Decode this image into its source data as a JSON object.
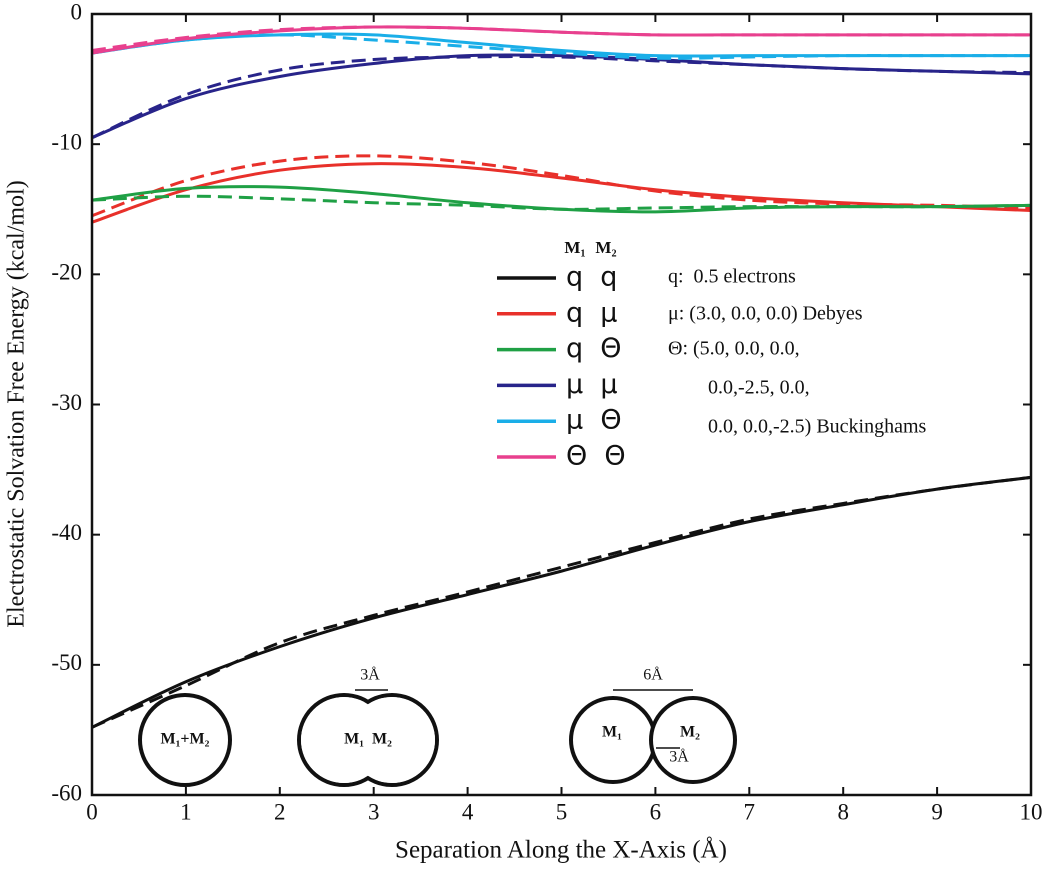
{
  "chart_data": {
    "type": "line",
    "x_label": "Separation Along the X-Axis (Å)",
    "y_label": "Electrostatic Solvation Free Energy (kcal/mol)",
    "x": [
      0,
      1,
      2,
      3,
      4,
      5,
      6,
      7,
      8,
      9,
      10
    ],
    "xlim": [
      0,
      10
    ],
    "ylim": [
      -60,
      0
    ],
    "xticks": [
      0,
      1,
      2,
      3,
      4,
      5,
      6,
      7,
      8,
      9,
      10
    ],
    "yticks": [
      -60,
      -50,
      -40,
      -30,
      -20,
      -10,
      0
    ],
    "legend_header": [
      "M₁",
      "M₂"
    ],
    "series": [
      {
        "name": "q  q",
        "color": "#111111",
        "values": [
          -54.8,
          -51.3,
          -48.6,
          -46.4,
          -44.6,
          -42.8,
          -40.8,
          -39.0,
          -37.7,
          -36.5,
          -35.6
        ]
      },
      {
        "color": "#111111",
        "dashed": true,
        "values": [
          -54.8,
          -51.6,
          -48.3,
          -46.2,
          -44.4,
          -42.5,
          -40.6,
          -38.8,
          -37.6,
          -36.5,
          -35.6
        ]
      },
      {
        "name": "q  μ",
        "color": "#e8302a",
        "values": [
          -16.0,
          -13.5,
          -12.0,
          -11.5,
          -11.8,
          -12.6,
          -13.5,
          -14.1,
          -14.5,
          -14.8,
          -15.1
        ]
      },
      {
        "color": "#e8302a",
        "dashed": true,
        "values": [
          -15.5,
          -12.8,
          -11.3,
          -10.9,
          -11.4,
          -12.4,
          -13.6,
          -14.3,
          -14.6,
          -14.7,
          -14.9
        ]
      },
      {
        "name": "q  Θ",
        "color": "#1fa045",
        "values": [
          -14.3,
          -13.4,
          -13.3,
          -13.8,
          -14.5,
          -15.0,
          -15.2,
          -14.9,
          -14.8,
          -14.8,
          -14.7
        ]
      },
      {
        "color": "#1fa045",
        "dashed": true,
        "values": [
          -14.3,
          -14.0,
          -14.2,
          -14.5,
          -14.7,
          -15.0,
          -14.9,
          -14.8,
          -14.8,
          -14.8,
          -14.7
        ]
      },
      {
        "name": "μ  μ",
        "color": "#28248a",
        "values": [
          -9.5,
          -6.5,
          -4.8,
          -3.8,
          -3.2,
          -3.2,
          -3.5,
          -3.9,
          -4.2,
          -4.4,
          -4.6
        ]
      },
      {
        "color": "#28248a",
        "dashed": true,
        "values": [
          -9.5,
          -6.2,
          -4.3,
          -3.5,
          -3.3,
          -3.3,
          -3.6,
          -3.9,
          -4.2,
          -4.4,
          -4.5
        ]
      },
      {
        "name": "μ  Θ",
        "color": "#1aaee8",
        "values": [
          -3.0,
          -2.0,
          -1.6,
          -1.6,
          -2.2,
          -2.8,
          -3.2,
          -3.2,
          -3.2,
          -3.2,
          -3.2
        ]
      },
      {
        "color": "#1aaee8",
        "dashed": true,
        "values": [
          -3.0,
          -2.0,
          -1.6,
          -2.0,
          -2.5,
          -3.0,
          -3.4,
          -3.3,
          -3.2,
          -3.2,
          -3.2
        ]
      },
      {
        "name": "Θ  Θ",
        "color": "#e8408e",
        "values": [
          -3.0,
          -1.9,
          -1.3,
          -1.0,
          -1.1,
          -1.4,
          -1.6,
          -1.6,
          -1.6,
          -1.6,
          -1.6
        ]
      },
      {
        "color": "#e8408e",
        "dashed": true,
        "values": [
          -2.8,
          -1.8,
          -1.2,
          -1.0,
          -1.1,
          -1.4,
          -1.6,
          -1.6,
          -1.6,
          -1.6,
          -1.6
        ]
      }
    ],
    "notes": [
      "q:  0.5 electrons",
      "μ: (3.0, 0.0, 0.0) Debyes",
      "Θ: (5.0, 0.0, 0.0,",
      "0.0,-2.5, 0.0,",
      "0.0, 0.0,-2.5) Buckinghams"
    ],
    "inset_labels": [
      "M₁+M₂",
      "3Å",
      "M₁  M₂",
      "6Å",
      "M₁",
      "M₂",
      "3Å"
    ]
  }
}
